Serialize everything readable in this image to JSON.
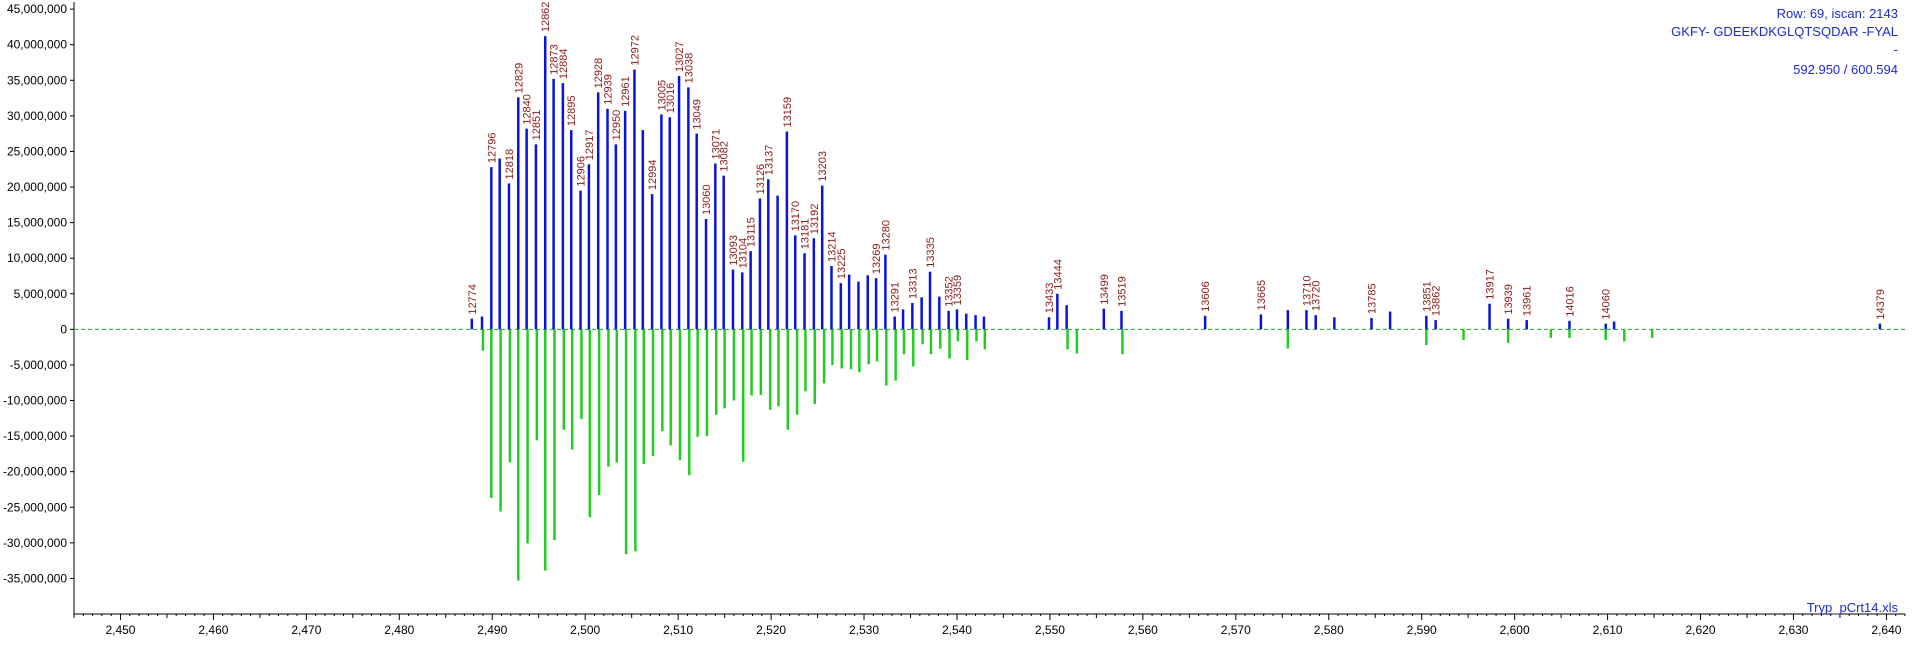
{
  "header": {
    "row_info": "Row: 69, iscan: 2143",
    "sequence": "GKFY- GDEEKDKGLQTSQDAR -FYAL",
    "dash": "-",
    "mz": "592.950 / 600.594"
  },
  "footer": {
    "file_name": "Tryp_pCrt14.xls"
  },
  "colors": {
    "positive": "#0b14d6",
    "negative": "#22cc22",
    "peak_label": "#8b1a1a",
    "baseline": "#22aa22",
    "info_text": "#1f2bcc"
  },
  "chart_data": {
    "type": "bar",
    "title": "",
    "xlabel": "",
    "ylabel": "",
    "xlim": [
      2445,
      2642
    ],
    "ylim": [
      -40000000,
      46000000
    ],
    "grid": false,
    "y_ticks": [
      45000000,
      40000000,
      35000000,
      30000000,
      25000000,
      20000000,
      15000000,
      10000000,
      5000000,
      0,
      -5000000,
      -10000000,
      -15000000,
      -20000000,
      -25000000,
      -30000000,
      -35000000
    ],
    "y_tick_labels": [
      "45,000,000",
      "40,000,000",
      "35,000,000",
      "30,000,000",
      "25,000,000",
      "20,000,000",
      "15,000,000",
      "10,000,000",
      "5,000,000",
      "0",
      "-5,000,000",
      "-10,000,000",
      "-15,000,000",
      "-20,000,000",
      "-25,000,000",
      "-30,000,000",
      "-35,000,000"
    ],
    "x_ticks": [
      2450,
      2460,
      2470,
      2480,
      2490,
      2500,
      2510,
      2520,
      2530,
      2540,
      2550,
      2560,
      2570,
      2580,
      2590,
      2600,
      2610,
      2620,
      2630,
      2640
    ],
    "x_tick_labels": [
      "2,450",
      "2,460",
      "2,470",
      "2,480",
      "2,490",
      "2,500",
      "2,510",
      "2,520",
      "2,530",
      "2,540",
      "2,550",
      "2,560",
      "2,570",
      "2,580",
      "2,590",
      "2,600",
      "2,610",
      "2,620",
      "2,630",
      "2,640"
    ],
    "series": [
      {
        "x": [
          2487.8,
          2488.9,
          2489.9,
          2490.8,
          2491.8,
          2492.8,
          2493.7,
          2494.7,
          2495.7,
          2496.6,
          2497.6,
          2498.5,
          2499.5,
          2500.4,
          2501.4,
          2502.4,
          2503.3,
          2504.3,
          2505.3,
          2506.2,
          2507.2,
          2508.2,
          2509.1,
          2510.1,
          2511.1,
          2512.0,
          2513.0,
          2514.0,
          2514.9,
          2515.9,
          2516.9,
          2517.8,
          2518.8,
          2519.7,
          2520.7,
          2521.7,
          2522.6,
          2523.6,
          2524.6,
          2525.5,
          2526.5,
          2527.5,
          2528.4,
          2529.4,
          2530.4,
          2531.3,
          2532.3,
          2533.3,
          2534.2,
          2535.2,
          2536.2,
          2537.1,
          2538.1,
          2539.1,
          2540.0,
          2541.0,
          2542.0,
          2542.9,
          2549.9,
          2550.8,
          2551.8,
          2555.8,
          2557.7,
          2566.7,
          2572.7,
          2575.6,
          2577.6,
          2578.6,
          2580.6,
          2584.6,
          2586.6,
          2590.5,
          2591.5,
          2597.3,
          2599.3,
          2601.3,
          2605.9,
          2609.8,
          2610.7,
          2639.3
        ],
        "y": [
          1500000,
          1800000,
          22800000,
          24000000,
          20500000,
          32600000,
          28200000,
          26000000,
          41200000,
          35200000,
          34600000,
          28000000,
          19500000,
          23200000,
          33300000,
          31000000,
          26000000,
          30700000,
          36500000,
          28000000,
          19000000,
          30200000,
          29800000,
          35600000,
          34000000,
          27500000,
          15500000,
          23300000,
          21600000,
          8400000,
          8000000,
          11000000,
          18400000,
          21100000,
          18800000,
          27800000,
          13200000,
          10700000,
          12800000,
          20200000,
          8900000,
          6500000,
          7700000,
          6700000,
          7600000,
          7200000,
          10500000,
          1800000,
          2800000,
          3700000,
          4500000,
          8100000,
          4600000,
          2600000,
          2800000,
          2200000,
          2000000,
          1800000,
          1700000,
          5000000,
          3400000,
          2900000,
          2600000,
          1900000,
          2100000,
          2700000,
          2700000,
          2000000,
          1700000,
          1600000,
          2500000,
          1900000,
          1300000,
          3600000,
          1500000,
          1300000,
          1200000,
          800000,
          1100000,
          800000
        ],
        "peak_labels": [
          {
            "x": 2487.8,
            "y": 1500000,
            "label": "12774"
          },
          {
            "x": 2489.9,
            "y": 22800000,
            "label": "12796"
          },
          {
            "x": 2491.8,
            "y": 20500000,
            "label": "12818"
          },
          {
            "x": 2492.8,
            "y": 32600000,
            "label": "12829"
          },
          {
            "x": 2493.7,
            "y": 28200000,
            "label": "12840"
          },
          {
            "x": 2494.7,
            "y": 26000000,
            "label": "12851"
          },
          {
            "x": 2495.7,
            "y": 41200000,
            "label": "12862"
          },
          {
            "x": 2496.6,
            "y": 35200000,
            "label": "12873"
          },
          {
            "x": 2497.6,
            "y": 34600000,
            "label": "12884"
          },
          {
            "x": 2498.5,
            "y": 28000000,
            "label": "12895"
          },
          {
            "x": 2499.5,
            "y": 19500000,
            "label": "12906"
          },
          {
            "x": 2500.4,
            "y": 23200000,
            "label": "12917"
          },
          {
            "x": 2501.4,
            "y": 33300000,
            "label": "12928"
          },
          {
            "x": 2502.4,
            "y": 31000000,
            "label": "12939"
          },
          {
            "x": 2503.3,
            "y": 26000000,
            "label": "12950"
          },
          {
            "x": 2504.3,
            "y": 30700000,
            "label": "12961"
          },
          {
            "x": 2505.3,
            "y": 36500000,
            "label": "12972"
          },
          {
            "x": 2507.2,
            "y": 19000000,
            "label": "12994"
          },
          {
            "x": 2508.2,
            "y": 30200000,
            "label": "13005"
          },
          {
            "x": 2509.1,
            "y": 29800000,
            "label": "13016"
          },
          {
            "x": 2510.1,
            "y": 35600000,
            "label": "13027"
          },
          {
            "x": 2511.1,
            "y": 34000000,
            "label": "13038"
          },
          {
            "x": 2512.0,
            "y": 27500000,
            "label": "13049"
          },
          {
            "x": 2513.0,
            "y": 15500000,
            "label": "13060"
          },
          {
            "x": 2514.0,
            "y": 23300000,
            "label": "13071"
          },
          {
            "x": 2514.9,
            "y": 21600000,
            "label": "13082"
          },
          {
            "x": 2515.9,
            "y": 8400000,
            "label": "13093"
          },
          {
            "x": 2516.9,
            "y": 8000000,
            "label": "13104"
          },
          {
            "x": 2517.8,
            "y": 11000000,
            "label": "13115"
          },
          {
            "x": 2518.8,
            "y": 18400000,
            "label": "13126"
          },
          {
            "x": 2519.7,
            "y": 21100000,
            "label": "13137"
          },
          {
            "x": 2521.7,
            "y": 27800000,
            "label": "13159"
          },
          {
            "x": 2522.6,
            "y": 13200000,
            "label": "13170"
          },
          {
            "x": 2523.6,
            "y": 10700000,
            "label": "13181"
          },
          {
            "x": 2524.6,
            "y": 12800000,
            "label": "13192"
          },
          {
            "x": 2525.5,
            "y": 20200000,
            "label": "13203"
          },
          {
            "x": 2526.5,
            "y": 8900000,
            "label": "13214"
          },
          {
            "x": 2527.5,
            "y": 6500000,
            "label": "13225"
          },
          {
            "x": 2531.3,
            "y": 7200000,
            "label": "13269"
          },
          {
            "x": 2532.3,
            "y": 10500000,
            "label": "13280"
          },
          {
            "x": 2533.3,
            "y": 1800000,
            "label": "13291"
          },
          {
            "x": 2535.2,
            "y": 3700000,
            "label": "13313"
          },
          {
            "x": 2537.1,
            "y": 8100000,
            "label": "13335"
          },
          {
            "x": 2539.1,
            "y": 2600000,
            "label": "13352"
          },
          {
            "x": 2540.0,
            "y": 2800000,
            "label": "13359"
          },
          {
            "x": 2549.9,
            "y": 1700000,
            "label": "13433"
          },
          {
            "x": 2550.8,
            "y": 5000000,
            "label": "13444"
          },
          {
            "x": 2555.8,
            "y": 2900000,
            "label": "13499"
          },
          {
            "x": 2557.7,
            "y": 2600000,
            "label": "13519"
          },
          {
            "x": 2566.7,
            "y": 1900000,
            "label": "13606"
          },
          {
            "x": 2572.7,
            "y": 2100000,
            "label": "13665"
          },
          {
            "x": 2577.6,
            "y": 2700000,
            "label": "13710"
          },
          {
            "x": 2578.6,
            "y": 2000000,
            "label": "13720"
          },
          {
            "x": 2584.6,
            "y": 1600000,
            "label": "13785"
          },
          {
            "x": 2590.5,
            "y": 1900000,
            "label": "13851"
          },
          {
            "x": 2591.5,
            "y": 1300000,
            "label": "13862"
          },
          {
            "x": 2597.3,
            "y": 3600000,
            "label": "13917"
          },
          {
            "x": 2599.3,
            "y": 1500000,
            "label": "13939"
          },
          {
            "x": 2601.3,
            "y": 1300000,
            "label": "13961"
          },
          {
            "x": 2605.9,
            "y": 1200000,
            "label": "14016"
          },
          {
            "x": 2609.8,
            "y": 800000,
            "label": "14060"
          },
          {
            "x": 2639.3,
            "y": 800000,
            "label": "14379"
          }
        ]
      },
      {
        "x": [
          2489.0,
          2489.9,
          2490.9,
          2491.9,
          2492.8,
          2493.8,
          2494.8,
          2495.7,
          2496.7,
          2497.7,
          2498.6,
          2499.6,
          2500.5,
          2501.5,
          2502.5,
          2503.4,
          2504.4,
          2505.4,
          2506.3,
          2507.3,
          2508.3,
          2509.2,
          2510.2,
          2511.2,
          2512.1,
          2513.1,
          2514.1,
          2515.0,
          2516.0,
          2517.0,
          2517.9,
          2518.9,
          2519.9,
          2520.8,
          2521.8,
          2522.8,
          2523.7,
          2524.7,
          2525.7,
          2526.6,
          2527.6,
          2528.6,
          2529.5,
          2530.5,
          2531.4,
          2532.4,
          2533.4,
          2534.3,
          2535.3,
          2536.3,
          2537.2,
          2538.2,
          2539.2,
          2540.1,
          2541.1,
          2542.1,
          2543.0,
          2551.9,
          2552.9,
          2557.8,
          2575.6,
          2590.5,
          2594.5,
          2599.3,
          2603.9,
          2605.9,
          2609.8,
          2611.8,
          2614.8
        ],
        "y": [
          -3000000,
          -23700000,
          -25600000,
          -18700000,
          -35300000,
          -30100000,
          -15600000,
          -33900000,
          -29600000,
          -14100000,
          -16900000,
          -12600000,
          -26400000,
          -23300000,
          -19300000,
          -18700000,
          -31600000,
          -31200000,
          -18900000,
          -17800000,
          -14300000,
          -16300000,
          -18400000,
          -20500000,
          -15100000,
          -15000000,
          -12000000,
          -11100000,
          -10000000,
          -18600000,
          -9300000,
          -9200000,
          -11300000,
          -10800000,
          -14100000,
          -12000000,
          -8700000,
          -10500000,
          -7600000,
          -5000000,
          -5500000,
          -5600000,
          -6000000,
          -4900000,
          -4500000,
          -7900000,
          -7200000,
          -3500000,
          -5200000,
          -2100000,
          -3500000,
          -2700000,
          -4100000,
          -1700000,
          -4300000,
          -1700000,
          -2800000,
          -2800000,
          -3400000,
          -3500000,
          -2700000,
          -2200000,
          -1500000,
          -1900000,
          -1200000,
          -1200000,
          -1500000,
          -1700000,
          -1200000
        ]
      }
    ]
  }
}
